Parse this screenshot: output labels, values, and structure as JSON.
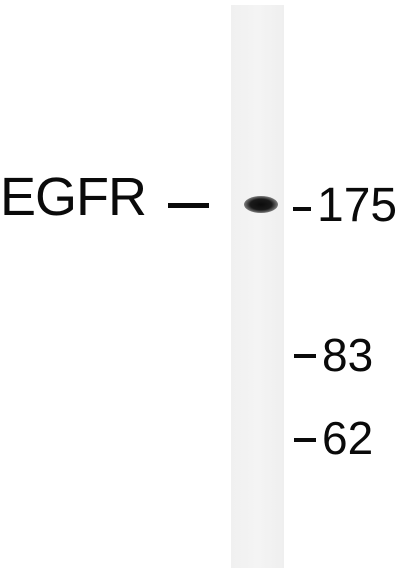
{
  "blot": {
    "protein": "EGFR",
    "markers": [
      {
        "label": "175"
      },
      {
        "label": "83"
      },
      {
        "label": "62"
      }
    ]
  }
}
